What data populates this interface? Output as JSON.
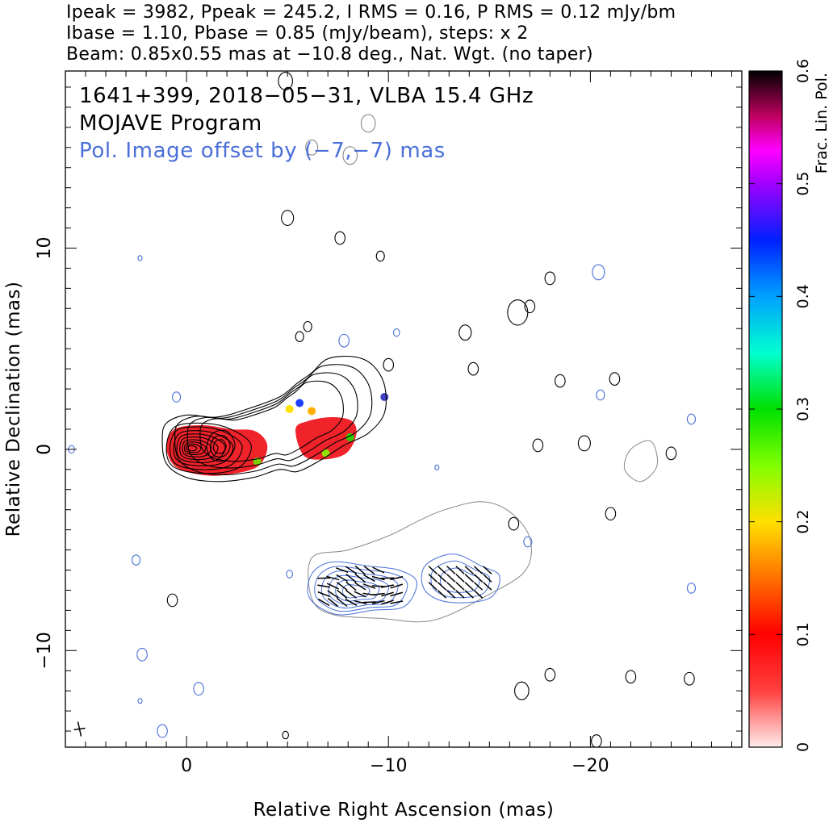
{
  "header": {
    "line1": "Ipeak = 3982, Ppeak = 245.2, I RMS = 0.16, P RMS = 0.12 mJy/bm",
    "line2": "Ibase = 1.10, Pbase = 0.85 (mJy/beam), steps: x 2",
    "line3": "Beam: 0.85x0.55 mas at −10.8 deg., Nat. Wgt. (no taper)"
  },
  "annotations": {
    "source": "1641+399, 2018−05−31, VLBA 15.4 GHz",
    "program": "MOJAVE Program",
    "pol_note": "Pol. Image offset by (−7,−7) mas"
  },
  "colors": {
    "total_intensity_contours": "#000000",
    "pol_contours": "#4a6fd8",
    "grey_contour": "#888888",
    "annotation_blue": "#4a6fd8"
  },
  "chart_data": {
    "type": "heatmap",
    "description_kind": "VLBA radio map with total-intensity contours, fractional polarization color and EVPA ticks",
    "xlabel": "Relative Right Ascension (mas)",
    "ylabel": "Relative Declination (mas)",
    "xlim": [
      6,
      -27.5
    ],
    "ylim": [
      -14.8,
      18.8
    ],
    "x_axis_inverted": true,
    "xticks": [
      {
        "value": 0,
        "label": "0"
      },
      {
        "value": -10,
        "label": "−10"
      },
      {
        "value": -20,
        "label": "−20"
      }
    ],
    "yticks": [
      {
        "value": 10,
        "label": "10"
      },
      {
        "value": 0,
        "label": "0"
      },
      {
        "value": -10,
        "label": "−10"
      }
    ],
    "colorbar": {
      "label": "Frac. Lin. Pol.",
      "range": [
        0,
        0.6
      ],
      "ticks": [
        {
          "value": 0,
          "label": "0"
        },
        {
          "value": 0.1,
          "label": "0.1"
        },
        {
          "value": 0.2,
          "label": "0.2"
        },
        {
          "value": 0.3,
          "label": "0.3"
        },
        {
          "value": 0.4,
          "label": "0.4"
        },
        {
          "value": 0.5,
          "label": "0.5"
        },
        {
          "value": 0.6,
          "label": "0.6"
        }
      ],
      "stops": [
        {
          "v": 0.0,
          "c": "#ffecec"
        },
        {
          "v": 0.05,
          "c": "#ff4040"
        },
        {
          "v": 0.1,
          "c": "#ff0000"
        },
        {
          "v": 0.15,
          "c": "#ff7000"
        },
        {
          "v": 0.2,
          "c": "#ffe000"
        },
        {
          "v": 0.25,
          "c": "#80ff00"
        },
        {
          "v": 0.3,
          "c": "#00e000"
        },
        {
          "v": 0.35,
          "c": "#00ffd0"
        },
        {
          "v": 0.4,
          "c": "#00a0ff"
        },
        {
          "v": 0.45,
          "c": "#0020ff"
        },
        {
          "v": 0.5,
          "c": "#a000ff"
        },
        {
          "v": 0.53,
          "c": "#ff00ff"
        },
        {
          "v": 0.56,
          "c": "#c00060"
        },
        {
          "v": 0.6,
          "c": "#000000"
        }
      ]
    },
    "core_position_mas": [
      0,
      0
    ],
    "pol_offset_mas": [
      -7,
      -7
    ],
    "beam": {
      "major_mas": 0.85,
      "minor_mas": 0.55,
      "pa_deg": -10.8
    }
  }
}
